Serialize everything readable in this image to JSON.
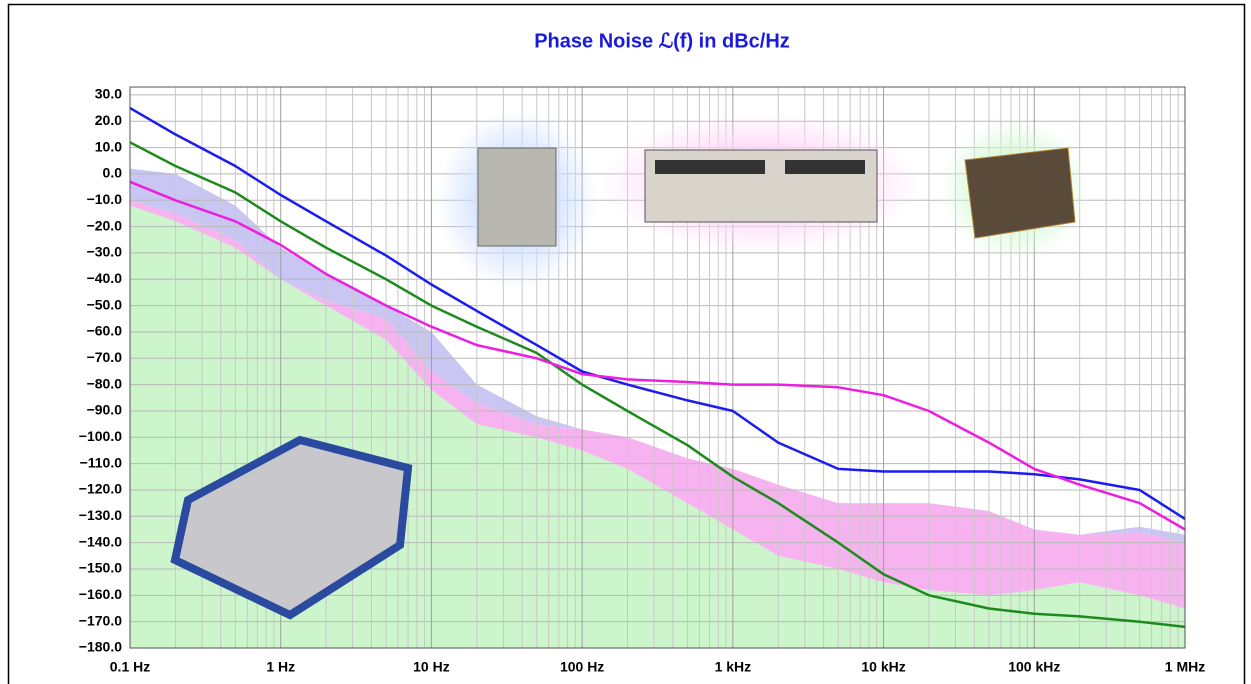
{
  "chart_data": {
    "type": "line",
    "title": "Phase Noise ℒ(f) in dBc/Hz",
    "xscale": "log",
    "grid": true,
    "xgrid_minor": true,
    "xlim": [
      0.1,
      1000000
    ],
    "ylim": [
      -180,
      33
    ],
    "xticks": [
      {
        "value": 0.1,
        "label": "0.1 Hz"
      },
      {
        "value": 1,
        "label": "1 Hz"
      },
      {
        "value": 10,
        "label": "10 Hz"
      },
      {
        "value": 100,
        "label": "100 Hz"
      },
      {
        "value": 1000,
        "label": "1 kHz"
      },
      {
        "value": 10000,
        "label": "10 kHz"
      },
      {
        "value": 100000,
        "label": "100 kHz"
      },
      {
        "value": 1000000,
        "label": "1 MHz"
      }
    ],
    "yticks": [
      {
        "value": 30,
        "label": "30.0"
      },
      {
        "value": 20,
        "label": "20.0"
      },
      {
        "value": 10,
        "label": "10.0"
      },
      {
        "value": 0,
        "label": "0.0"
      },
      {
        "value": -10,
        "label": "−10.0"
      },
      {
        "value": -20,
        "label": "−20.0"
      },
      {
        "value": -30,
        "label": "−30.0"
      },
      {
        "value": -40,
        "label": "−40.0"
      },
      {
        "value": -50,
        "label": "−50.0"
      },
      {
        "value": -60,
        "label": "−60.0"
      },
      {
        "value": -70,
        "label": "−70.0"
      },
      {
        "value": -80,
        "label": "−80.0"
      },
      {
        "value": -90,
        "label": "−90.0"
      },
      {
        "value": -100,
        "label": "−100.0"
      },
      {
        "value": -110,
        "label": "−110.0"
      },
      {
        "value": -120,
        "label": "−120.0"
      },
      {
        "value": -130,
        "label": "−130.0"
      },
      {
        "value": -140,
        "label": "−140.0"
      },
      {
        "value": -150,
        "label": "−150.0"
      },
      {
        "value": -160,
        "label": "−160.0"
      },
      {
        "value": -170,
        "label": "−170.0"
      },
      {
        "value": -180,
        "label": "−180.0"
      }
    ],
    "x": [
      0.1,
      0.2,
      0.5,
      1,
      2,
      5,
      10,
      20,
      50,
      100,
      200,
      500,
      1000,
      2000,
      5000,
      10000,
      20000,
      50000,
      100000,
      200000,
      500000,
      1000000
    ],
    "areas": [
      {
        "color": "#ccf5cc",
        "upper": [
          -12,
          -18,
          -28,
          -40,
          -50,
          -63,
          -82,
          -95,
          -100,
          -105,
          -112,
          -125,
          -135,
          -145,
          -150,
          -155,
          -158,
          -160,
          -158,
          -155,
          -160,
          -165
        ]
      },
      {
        "color": "#f7b3f0",
        "lower": [
          -12,
          -18,
          -28,
          -40,
          -50,
          -63,
          -82,
          -95,
          -100,
          -105,
          -112,
          -125,
          -135,
          -145,
          -150,
          -155,
          -158,
          -160,
          -158,
          -155,
          -160,
          -165
        ],
        "upper": [
          -10,
          -15,
          -25,
          -40,
          -48,
          -55,
          -75,
          -87,
          -95,
          -97,
          -100,
          -108,
          -112,
          -118,
          -125,
          -125,
          -125,
          -128,
          -135,
          -137,
          -136,
          -140
        ]
      },
      {
        "color": "#c9c6f3",
        "lower": [
          -10,
          -15,
          -25,
          -40,
          -48,
          -55,
          -75,
          -87,
          -95,
          -97,
          -100,
          -108,
          -112,
          -118,
          -125,
          -125,
          -125,
          -128,
          -135,
          -137,
          -136,
          -140
        ],
        "upper": [
          2,
          0,
          -12,
          -28,
          -38,
          -50,
          -60,
          -80,
          -92,
          -97,
          -100,
          -108,
          -112,
          -118,
          -125,
          -125,
          -125,
          -128,
          -135,
          -137,
          -134,
          -137
        ]
      }
    ],
    "series": [
      {
        "color": "#1c1cf0",
        "values": [
          25,
          15,
          3,
          -8,
          -18,
          -31,
          -42,
          -52,
          -65,
          -75,
          -80,
          -86,
          -90,
          -102,
          -112,
          -113,
          -113,
          -113,
          -114,
          -116,
          -120,
          -131
        ]
      },
      {
        "color": "#1e8a1e",
        "values": [
          12,
          3,
          -7,
          -18,
          -28,
          -40,
          -50,
          -58,
          -68,
          -80,
          -90,
          -103,
          -115,
          -125,
          -140,
          -152,
          -160,
          -165,
          -167,
          -168,
          -170,
          -172
        ]
      },
      {
        "color": "#ec1ee0",
        "values": [
          -3,
          -10,
          -18,
          -27,
          -38,
          -50,
          -58,
          -65,
          -70,
          -76,
          -78,
          -79,
          -80,
          -80,
          -81,
          -84,
          -90,
          -102,
          -112,
          -118,
          -125,
          -135
        ]
      }
    ]
  }
}
